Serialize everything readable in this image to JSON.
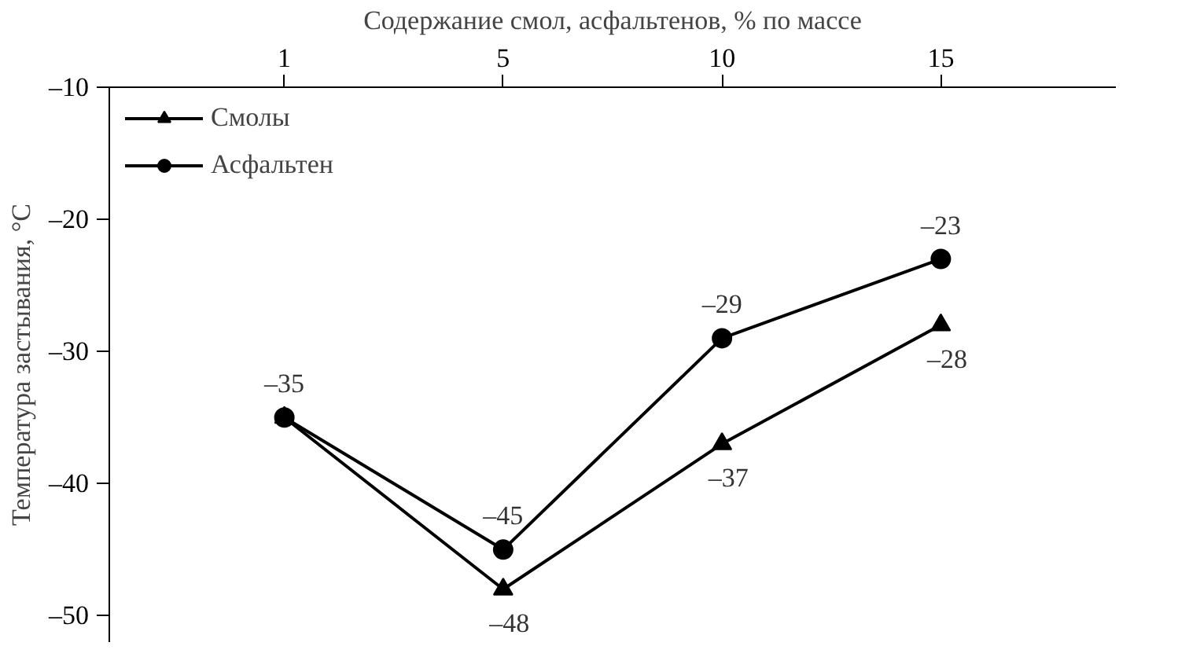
{
  "chart_data": {
    "type": "line",
    "xlabel": "Содержание смол, асфальтенов, % по массе",
    "ylabel": "Температура застывания, °C",
    "categories": [
      "1",
      "5",
      "10",
      "15"
    ],
    "ylim": [
      -52,
      -10
    ],
    "yticks": [
      {
        "value": -10,
        "label": "–10"
      },
      {
        "value": -20,
        "label": "–20"
      },
      {
        "value": -30,
        "label": "–30"
      },
      {
        "value": -40,
        "label": "–40"
      },
      {
        "value": -50,
        "label": "–50"
      }
    ],
    "series": [
      {
        "name": "Асфальтен",
        "color": "#000000",
        "marker": "circle",
        "values": [
          -35,
          -45,
          -29,
          -23
        ],
        "value_labels": [
          "–35",
          "–45",
          "–29",
          "–23"
        ]
      },
      {
        "name": "Смолы",
        "color": "#000000",
        "marker": "triangle",
        "values": [
          -35,
          -48,
          -37,
          -28
        ],
        "value_labels": [
          null,
          "–48",
          "–37",
          "–28"
        ]
      }
    ],
    "grid": false,
    "legend": "top left",
    "line_style": "solid"
  }
}
